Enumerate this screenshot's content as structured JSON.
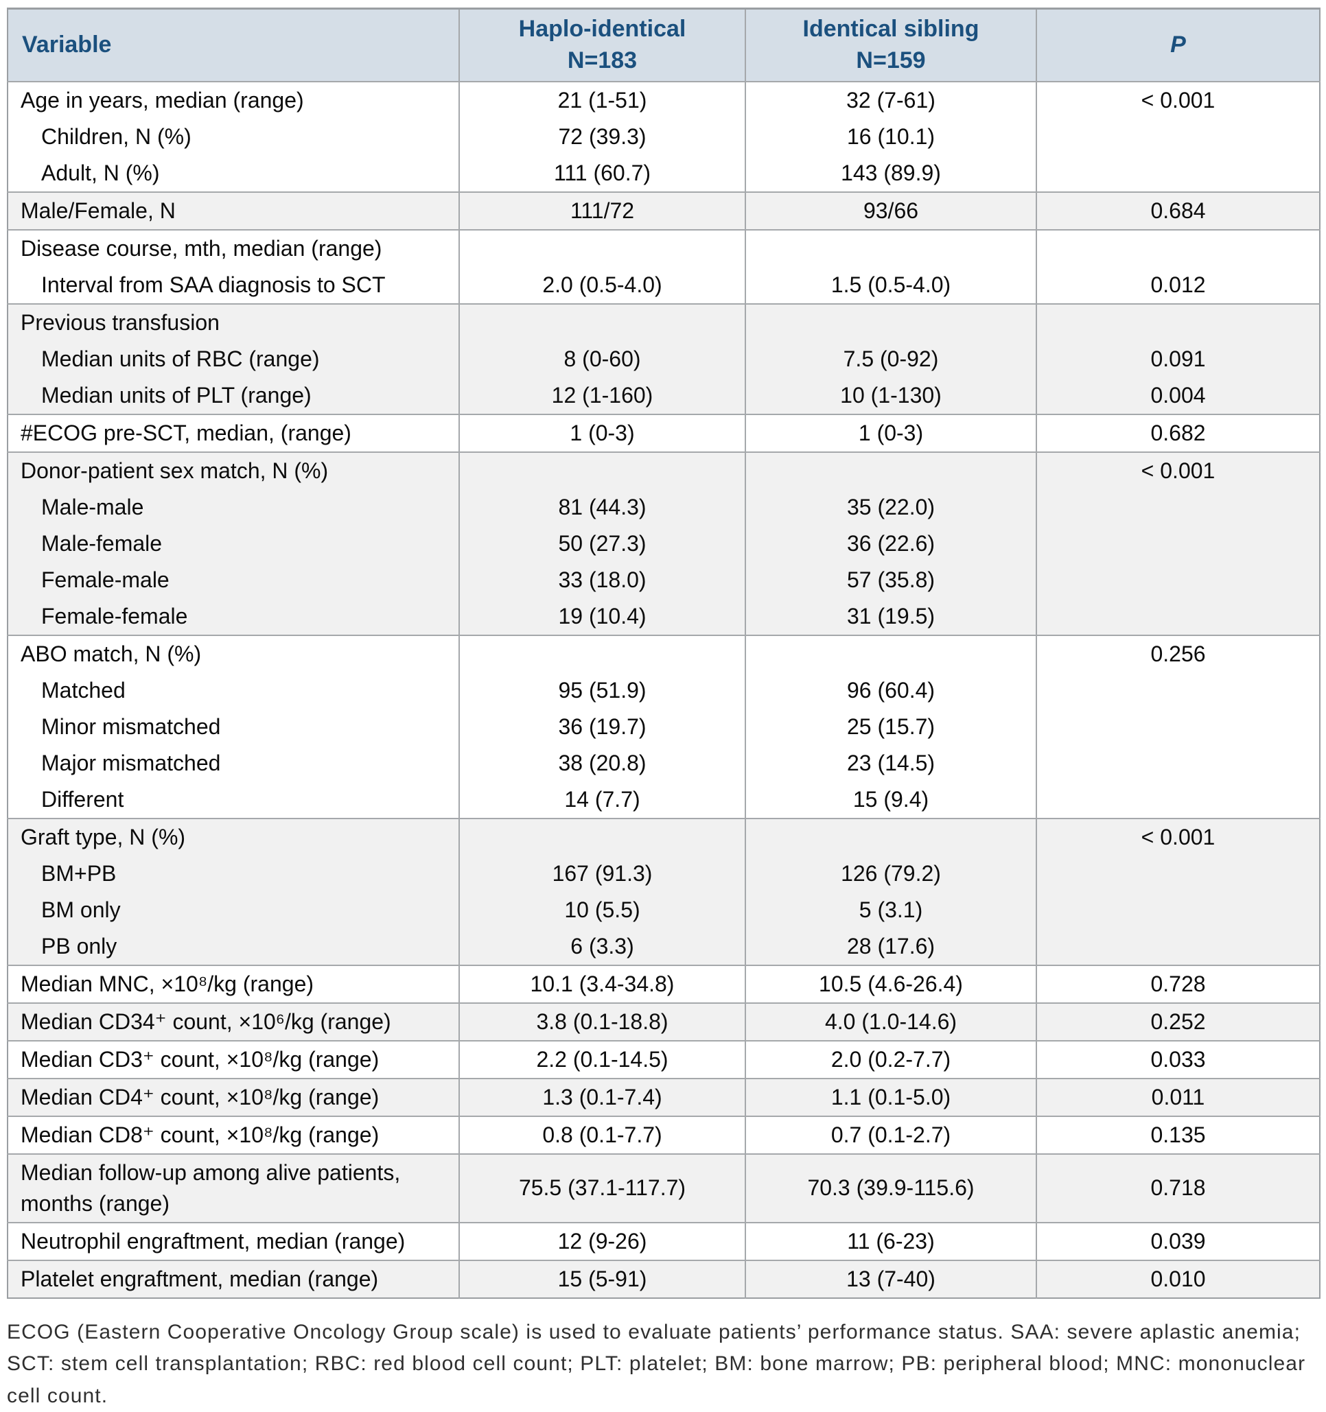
{
  "colors": {
    "header_bg": "#d5dee7",
    "header_text": "#1b507e",
    "row_alt_bg": "#f1f1f1",
    "border": "#a5a8ab",
    "outer_border": "#9a9ea2",
    "body_text": "#0c0c0c",
    "footnote_text": "#2f2f2f"
  },
  "table": {
    "columns": [
      {
        "label": "Variable",
        "sub": ""
      },
      {
        "label": "Haplo-identical",
        "sub": "N=183"
      },
      {
        "label": "Identical sibling",
        "sub": "N=159"
      },
      {
        "label": "P",
        "sub": ""
      }
    ],
    "groups": [
      {
        "shaded": false,
        "rows": [
          {
            "label": "Age in years, median (range)",
            "indent": false,
            "haplo": "21 (1-51)",
            "sibling": "32 (7-61)",
            "p": "< 0.001"
          },
          {
            "label": "Children, N (%)",
            "indent": true,
            "haplo": "72 (39.3)",
            "sibling": "16 (10.1)",
            "p": ""
          },
          {
            "label": "Adult, N (%)",
            "indent": true,
            "haplo": "111 (60.7)",
            "sibling": "143 (89.9)",
            "p": ""
          }
        ]
      },
      {
        "shaded": true,
        "rows": [
          {
            "label": "Male/Female, N",
            "indent": false,
            "haplo": "111/72",
            "sibling": "93/66",
            "p": "0.684"
          }
        ]
      },
      {
        "shaded": false,
        "rows": [
          {
            "label": "Disease course, mth, median (range)",
            "indent": false,
            "haplo": "",
            "sibling": "",
            "p": ""
          },
          {
            "label": "Interval from SAA diagnosis to SCT",
            "indent": true,
            "haplo": "2.0 (0.5-4.0)",
            "sibling": "1.5 (0.5-4.0)",
            "p": "0.012"
          }
        ]
      },
      {
        "shaded": true,
        "rows": [
          {
            "label": "Previous transfusion",
            "indent": false,
            "haplo": "",
            "sibling": "",
            "p": ""
          },
          {
            "label": "Median units of RBC (range)",
            "indent": true,
            "haplo": "8 (0-60)",
            "sibling": "7.5 (0-92)",
            "p": "0.091"
          },
          {
            "label": "Median units of PLT (range)",
            "indent": true,
            "haplo": "12 (1-160)",
            "sibling": "10 (1-130)",
            "p": "0.004"
          }
        ]
      },
      {
        "shaded": false,
        "rows": [
          {
            "label": "#ECOG pre-SCT, median, (range)",
            "indent": false,
            "haplo": "1 (0-3)",
            "sibling": "1 (0-3)",
            "p": "0.682"
          }
        ]
      },
      {
        "shaded": true,
        "rows": [
          {
            "label": "Donor-patient sex match, N (%)",
            "indent": false,
            "haplo": "",
            "sibling": "",
            "p": "< 0.001"
          },
          {
            "label": "Male-male",
            "indent": true,
            "haplo": "81 (44.3)",
            "sibling": "35 (22.0)",
            "p": ""
          },
          {
            "label": "Male-female",
            "indent": true,
            "haplo": "50 (27.3)",
            "sibling": "36 (22.6)",
            "p": ""
          },
          {
            "label": "Female-male",
            "indent": true,
            "haplo": "33 (18.0)",
            "sibling": "57 (35.8)",
            "p": ""
          },
          {
            "label": "Female-female",
            "indent": true,
            "haplo": "19 (10.4)",
            "sibling": "31 (19.5)",
            "p": ""
          }
        ]
      },
      {
        "shaded": false,
        "rows": [
          {
            "label": "ABO match, N (%)",
            "indent": false,
            "haplo": "",
            "sibling": "",
            "p": "0.256"
          },
          {
            "label": "Matched",
            "indent": true,
            "haplo": "95 (51.9)",
            "sibling": "96 (60.4)",
            "p": ""
          },
          {
            "label": "Minor mismatched",
            "indent": true,
            "haplo": "36 (19.7)",
            "sibling": "25 (15.7)",
            "p": ""
          },
          {
            "label": "Major mismatched",
            "indent": true,
            "haplo": "38 (20.8)",
            "sibling": "23 (14.5)",
            "p": ""
          },
          {
            "label": "Different",
            "indent": true,
            "haplo": "14 (7.7)",
            "sibling": "15 (9.4)",
            "p": ""
          }
        ]
      },
      {
        "shaded": true,
        "rows": [
          {
            "label": "Graft type, N (%)",
            "indent": false,
            "haplo": "",
            "sibling": "",
            "p": "< 0.001"
          },
          {
            "label": "BM+PB",
            "indent": true,
            "haplo": "167 (91.3)",
            "sibling": "126 (79.2)",
            "p": ""
          },
          {
            "label": "BM only",
            "indent": true,
            "haplo": "10 (5.5)",
            "sibling": "5 (3.1)",
            "p": ""
          },
          {
            "label": "PB only",
            "indent": true,
            "haplo": "6 (3.3)",
            "sibling": "28 (17.6)",
            "p": ""
          }
        ]
      },
      {
        "shaded": false,
        "rows": [
          {
            "label": "Median MNC, ×10⁸/kg (range)",
            "indent": false,
            "haplo": "10.1 (3.4-34.8)",
            "sibling": "10.5 (4.6-26.4)",
            "p": "0.728"
          }
        ]
      },
      {
        "shaded": true,
        "rows": [
          {
            "label": "Median CD34⁺ count, ×10⁶/kg (range)",
            "indent": false,
            "haplo": "3.8 (0.1-18.8)",
            "sibling": "4.0 (1.0-14.6)",
            "p": "0.252"
          }
        ]
      },
      {
        "shaded": false,
        "rows": [
          {
            "label": "Median CD3⁺ count, ×10⁸/kg (range)",
            "indent": false,
            "haplo": "2.2 (0.1-14.5)",
            "sibling": "2.0 (0.2-7.7)",
            "p": "0.033"
          }
        ]
      },
      {
        "shaded": true,
        "rows": [
          {
            "label": "Median CD4⁺ count, ×10⁸/kg (range)",
            "indent": false,
            "haplo": "1.3 (0.1-7.4)",
            "sibling": "1.1 (0.1-5.0)",
            "p": "0.011"
          }
        ]
      },
      {
        "shaded": false,
        "rows": [
          {
            "label": "Median CD8⁺ count, ×10⁸/kg (range)",
            "indent": false,
            "haplo": "0.8 (0.1-7.7)",
            "sibling": "0.7 (0.1-2.7)",
            "p": "0.135"
          }
        ]
      },
      {
        "shaded": true,
        "rows": [
          {
            "label": "Median follow-up among alive patients, months (range)",
            "indent": false,
            "haplo": "75.5 (37.1-117.7)",
            "sibling": "70.3 (39.9-115.6)",
            "p": "0.718"
          }
        ]
      },
      {
        "shaded": false,
        "rows": [
          {
            "label": "Neutrophil engraftment, median (range)",
            "indent": false,
            "haplo": "12 (9-26)",
            "sibling": "11 (6-23)",
            "p": "0.039"
          }
        ]
      },
      {
        "shaded": true,
        "rows": [
          {
            "label": "Platelet engraftment, median (range)",
            "indent": false,
            "haplo": "15 (5-91)",
            "sibling": "13 (7-40)",
            "p": "0.010"
          }
        ]
      }
    ]
  },
  "footnote": "ECOG (Eastern Cooperative Oncology Group scale) is used to evaluate patients’ performance status. SAA: severe aplastic anemia; SCT: stem cell transplantation; RBC: red blood cell count; PLT: platelet; BM: bone marrow; PB: peripheral blood; MNC: mononuclear cell count."
}
